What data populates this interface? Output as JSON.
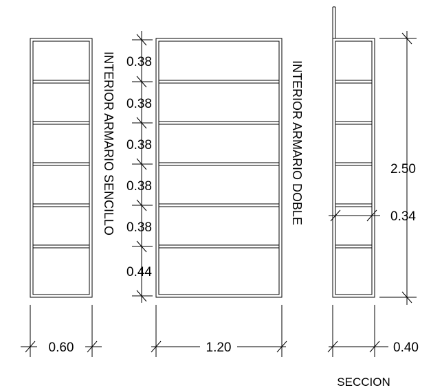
{
  "single_wardrobe": {
    "label": "INTERIOR ARMARIO SENCILLO",
    "width": "0.60"
  },
  "double_wardrobe": {
    "label": "INTERIOR ARMARIO DOBLE",
    "width": "1.20",
    "shelf_spacings": [
      "0.38",
      "0.38",
      "0.38",
      "0.38",
      "0.38",
      "0.44"
    ]
  },
  "section": {
    "title": "SECCION",
    "height": "2.50",
    "shelf_depth": "0.34",
    "depth": "0.40"
  }
}
